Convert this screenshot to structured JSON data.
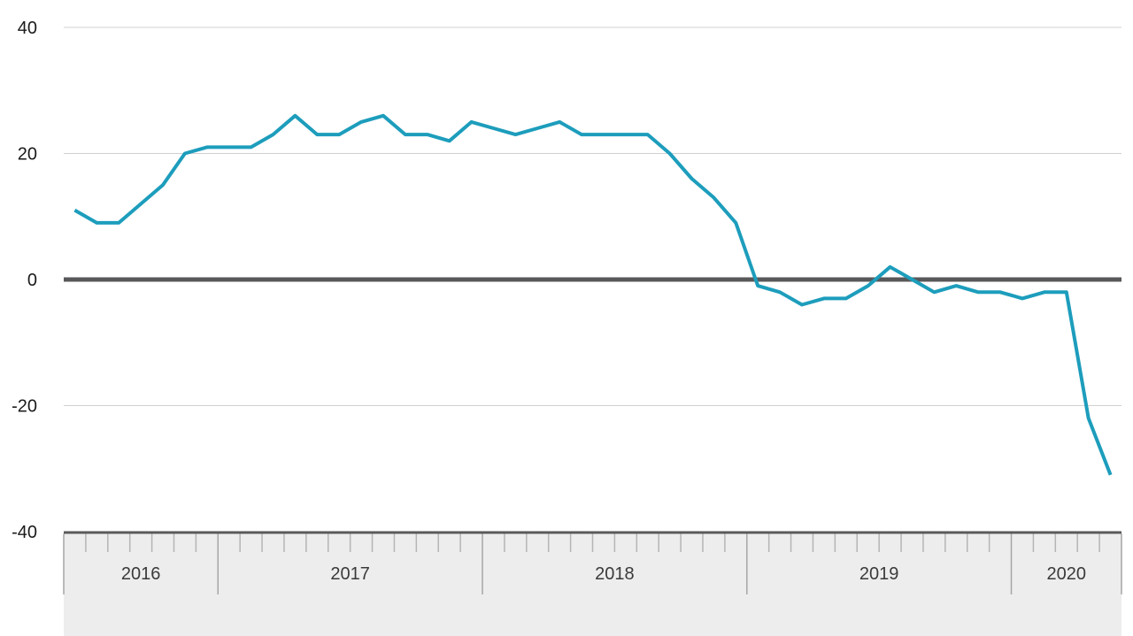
{
  "chart_data": {
    "type": "line",
    "title": "",
    "categories": [
      "Jun 2016",
      "Jul 2016",
      "Aug 2016",
      "Sep 2016",
      "Oct 2016",
      "Nov 2016",
      "Dec 2016",
      "Jan 2017",
      "Feb 2017",
      "Mar 2017",
      "Apr 2017",
      "May 2017",
      "Jun 2017",
      "Jul 2017",
      "Aug 2017",
      "Sep 2017",
      "Oct 2017",
      "Nov 2017",
      "Dec 2017",
      "Jan 2018",
      "Feb 2018",
      "Mar 2018",
      "Apr 2018",
      "May 2018",
      "Jun 2018",
      "Jul 2018",
      "Aug 2018",
      "Sep 2018",
      "Oct 2018",
      "Nov 2018",
      "Dec 2018",
      "Jan 2019",
      "Feb 2019",
      "Mar 2019",
      "Apr 2019",
      "May 2019",
      "Jun 2019",
      "Jul 2019",
      "Aug 2019",
      "Sep 2019",
      "Oct 2019",
      "Nov 2019",
      "Dec 2019",
      "Jan 2020",
      "Feb 2020",
      "Mar 2020",
      "Apr 2020",
      "May 2020"
    ],
    "series": [
      {
        "name": "monthly-balance",
        "values": [
          11,
          9,
          9,
          12,
          15,
          20,
          21,
          21,
          21,
          23,
          26,
          23,
          23,
          25,
          26,
          23,
          23,
          22,
          25,
          24,
          23,
          24,
          25,
          23,
          23,
          23,
          23,
          20,
          16,
          13,
          9,
          -1,
          -2,
          -4,
          -3,
          -3,
          -1,
          2,
          0,
          -2,
          -1,
          -2,
          -2,
          -3,
          -2,
          -2,
          -22,
          -31
        ]
      }
    ],
    "xlabel": "",
    "ylabel": "",
    "ylim": [
      -40,
      40
    ],
    "y_ticks": [
      40,
      20,
      0,
      -20,
      -40
    ],
    "year_labels": [
      "2016",
      "2017",
      "2018",
      "2019",
      "2020"
    ],
    "grid": "horizontal-on",
    "legend": "none",
    "zero_baseline_emphasized": true,
    "colors": {
      "line": "#1d9dbc",
      "zero_line": "#58585a",
      "gridline": "#d0d0d0",
      "axis_band_fill": "#ededed",
      "axis_band_border": "#5a5a5a",
      "month_tick": "#b5b5b5",
      "year_tick": "#a6a6a6",
      "y_label_text": "#1a1a1a",
      "year_label_text": "#3a3a3a",
      "background": "#ffffff"
    }
  }
}
